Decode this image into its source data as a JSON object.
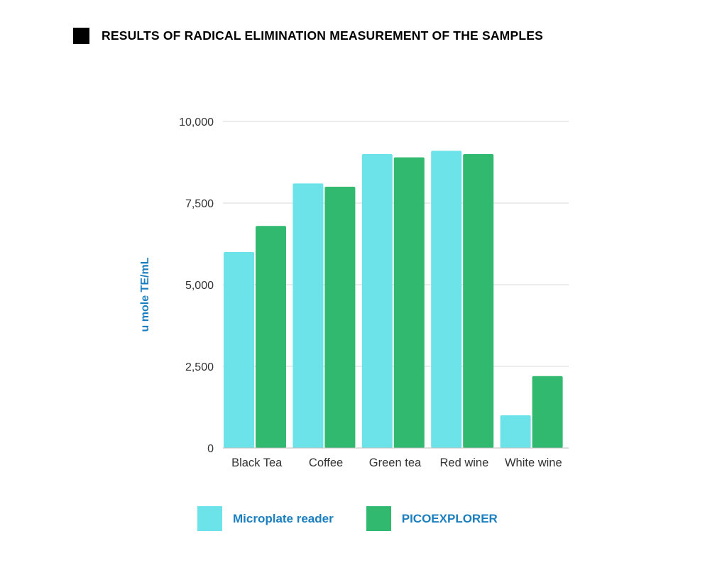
{
  "page": {
    "title": "RESULTS OF RADICAL ELIMINATION MEASUREMENT OF THE SAMPLES"
  },
  "colors": {
    "series1": "#6be3e9",
    "series2": "#30b96f",
    "axis_label": "#1b7fbf",
    "legend_label": "#1b7fbf",
    "grid": "#d9d9d9",
    "tick_text": "#333333"
  },
  "chart_data": {
    "type": "bar",
    "title": "",
    "xlabel": "",
    "ylabel": "u mole TE/mL",
    "categories": [
      "Black Tea",
      "Coffee",
      "Green tea",
      "Red wine",
      "White wine"
    ],
    "series": [
      {
        "name": "Microplate reader",
        "values": [
          6000,
          8100,
          9000,
          9100,
          1000
        ]
      },
      {
        "name": "PICOEXPLORER",
        "values": [
          6800,
          8000,
          8900,
          9000,
          2200
        ]
      }
    ],
    "ylim": [
      0,
      10000
    ],
    "yticks": [
      0,
      2500,
      5000,
      7500,
      10000
    ],
    "ytick_labels": [
      "0",
      "2,500",
      "5,000",
      "7,500",
      "10,000"
    ],
    "grid": true,
    "legend_position": "bottom"
  }
}
